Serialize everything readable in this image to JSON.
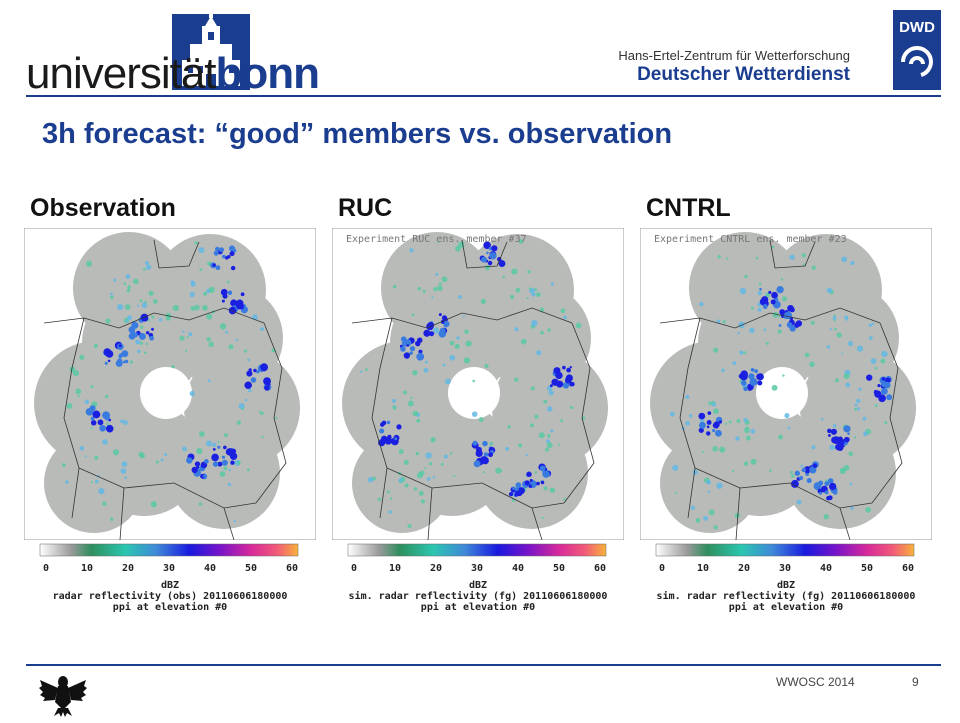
{
  "header": {
    "uni_prefix": "universität",
    "uni_bold": "bonn",
    "institute_line1": "Hans-Ertel-Zentrum für Wetterforschung",
    "institute_line2": "Deutscher Wetterdienst",
    "dwd_badge": "DWD"
  },
  "slide": {
    "title": "3h forecast: “good” members vs. observation"
  },
  "colorbar": {
    "ticks": [
      "0",
      "10",
      "20",
      "30",
      "40",
      "50",
      "60"
    ],
    "unit": "dBZ"
  },
  "panels": [
    {
      "label": "Observation",
      "experiment": "",
      "caption_line1": "radar reflectivity (obs) 20110606180000",
      "caption_line2": "ppi at elevation #0"
    },
    {
      "label": "RUC",
      "experiment": "Experiment RUC ens. member #37",
      "caption_line1": "sim. radar reflectivity (fg) 20110606180000",
      "caption_line2": "ppi at elevation #0"
    },
    {
      "label": "CNTRL",
      "experiment": "Experiment CNTRL ens. member #23",
      "caption_line1": "sim. radar reflectivity (fg) 20110606180000",
      "caption_line2": "ppi at elevation #0"
    }
  ],
  "footer": {
    "event": "WWOSC 2014",
    "page": "9"
  },
  "colors": {
    "brand_blue": "#1b3d8f",
    "radar_background": "#b8bbb8"
  }
}
